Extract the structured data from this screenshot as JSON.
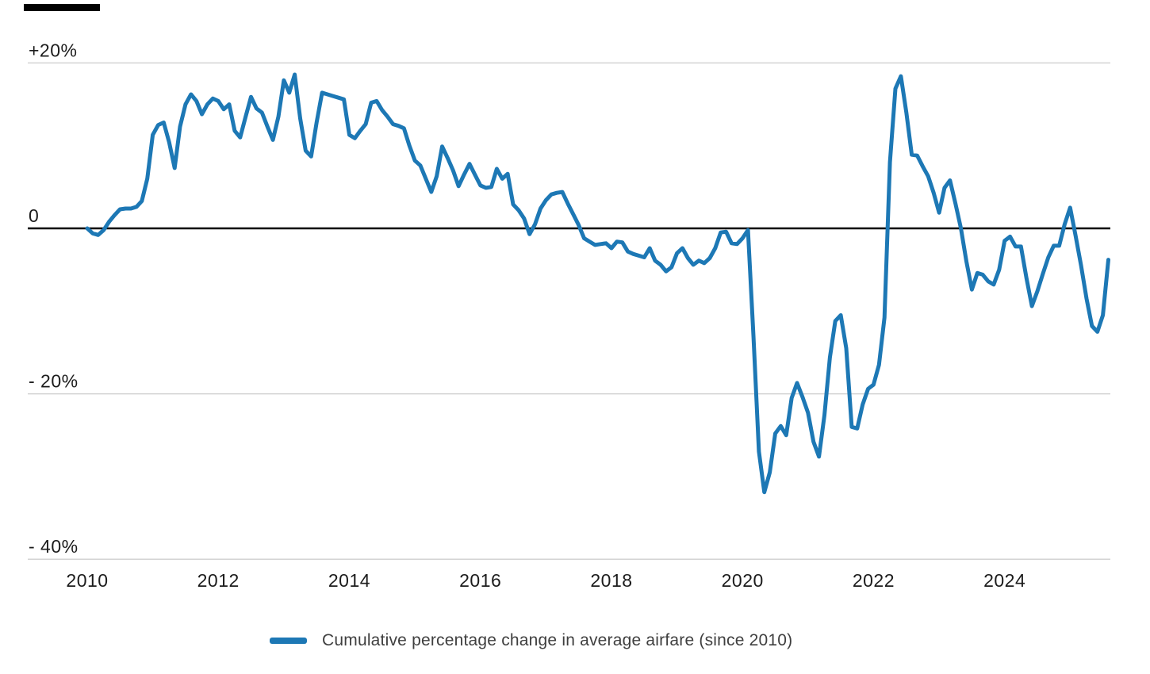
{
  "chart_data": {
    "type": "line",
    "title": "",
    "x_start": "2010-01",
    "x_end": "2025-08",
    "frequency": "monthly",
    "x_tick_labels": [
      "2010",
      "2012",
      "2014",
      "2016",
      "2018",
      "2020",
      "2022",
      "2024"
    ],
    "x_tick_years": [
      2010,
      2012,
      2014,
      2016,
      2018,
      2020,
      2022,
      2024
    ],
    "y_ticks": [
      {
        "label": "+20%",
        "value": 20
      },
      {
        "label": "0",
        "value": 0
      },
      {
        "label": "- 20%",
        "value": -20
      },
      {
        "label": "- 40%",
        "value": -40
      }
    ],
    "ylim": [
      -42,
      22
    ],
    "grid": "horizontal-only",
    "legend_position": "bottom-center",
    "series": [
      {
        "name": "Cumulative percentage change in average airfare (since 2010)",
        "unit": "%",
        "values": [
          0.0,
          -0.6,
          -0.8,
          -0.2,
          0.8,
          1.6,
          2.3,
          2.4,
          2.4,
          2.6,
          3.3,
          6.0,
          11.3,
          12.5,
          12.8,
          10.4,
          7.3,
          12.3,
          15.0,
          16.2,
          15.4,
          13.8,
          15.0,
          15.7,
          15.4,
          14.4,
          15.0,
          11.8,
          11.0,
          13.5,
          15.9,
          14.5,
          14.0,
          12.3,
          10.7,
          13.5,
          17.9,
          16.4,
          18.6,
          13.3,
          9.4,
          8.7,
          12.8,
          16.4,
          16.2,
          16.0,
          15.8,
          15.6,
          11.3,
          10.9,
          11.8,
          12.6,
          15.2,
          15.4,
          14.3,
          13.5,
          12.6,
          12.4,
          12.1,
          10.0,
          8.2,
          7.6,
          6.0,
          4.4,
          6.3,
          9.9,
          8.5,
          7.0,
          5.1,
          6.5,
          7.8,
          6.5,
          5.2,
          4.9,
          5.0,
          7.2,
          6.0,
          6.6,
          2.9,
          2.2,
          1.2,
          -0.7,
          0.5,
          2.4,
          3.4,
          4.1,
          4.3,
          4.4,
          3.0,
          1.7,
          0.4,
          -1.2,
          -1.6,
          -2.0,
          -1.9,
          -1.8,
          -2.4,
          -1.6,
          -1.7,
          -2.8,
          -3.1,
          -3.3,
          -3.5,
          -2.4,
          -3.9,
          -4.4,
          -5.2,
          -4.7,
          -3.0,
          -2.4,
          -3.6,
          -4.4,
          -3.9,
          -4.2,
          -3.6,
          -2.4,
          -0.5,
          -0.4,
          -1.8,
          -1.9,
          -1.2,
          -0.2,
          -13.0,
          -27.0,
          -31.9,
          -29.5,
          -24.8,
          -23.9,
          -25.0,
          -20.5,
          -18.7,
          -20.4,
          -22.3,
          -25.8,
          -27.6,
          -22.6,
          -15.6,
          -11.2,
          -10.5,
          -14.5,
          -24.0,
          -24.2,
          -21.3,
          -19.4,
          -18.9,
          -16.5,
          -10.8,
          8.0,
          16.9,
          18.4,
          14.0,
          8.9,
          8.8,
          7.5,
          6.3,
          4.3,
          1.9,
          4.9,
          5.8,
          3.0,
          0.0,
          -4.0,
          -7.4,
          -5.4,
          -5.6,
          -6.4,
          -6.8,
          -5.0,
          -1.5,
          -1.0,
          -2.2,
          -2.2,
          -6.0,
          -9.4,
          -7.6,
          -5.5,
          -3.5,
          -2.1,
          -2.1,
          0.5,
          2.5,
          -0.9,
          -4.5,
          -8.5,
          -11.8,
          -12.5,
          -10.5,
          -3.8
        ]
      }
    ]
  },
  "legend": {
    "label": "Cumulative percentage change in average airfare (since 2010)"
  },
  "colors": {
    "line": "#1d78b5",
    "grid": "#d3d3d3",
    "zero_line": "#000000",
    "axis_text": "#1c1c1c",
    "legend_text": "#3f3f3f",
    "brand_bar": "#000000"
  }
}
